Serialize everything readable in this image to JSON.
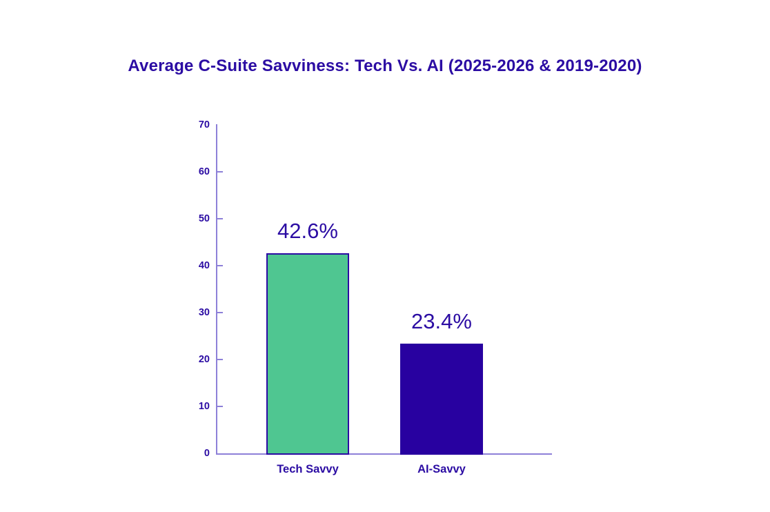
{
  "chart_data": {
    "type": "bar",
    "title": "Average C-Suite Savviness: Tech Vs. AI (2025-2026 & 2019-2020)",
    "categories": [
      "Tech Savvy",
      "AI-Savvy"
    ],
    "values": [
      42.6,
      23.4
    ],
    "value_labels": [
      "42.6%",
      "23.4%"
    ],
    "xlabel": "",
    "ylabel": "",
    "ylim": [
      0,
      70
    ],
    "yticks": [
      0,
      10,
      20,
      30,
      40,
      50,
      60,
      70
    ],
    "grid": false,
    "legend": false,
    "bar_colors": [
      "#4fc691",
      "#2801a0"
    ],
    "bar_border_colors": [
      "#2b0aa3",
      "#2801a0"
    ],
    "ink_color": "#2b0ca3",
    "axis_color": "#8d80d8",
    "background": "#ffffff"
  }
}
